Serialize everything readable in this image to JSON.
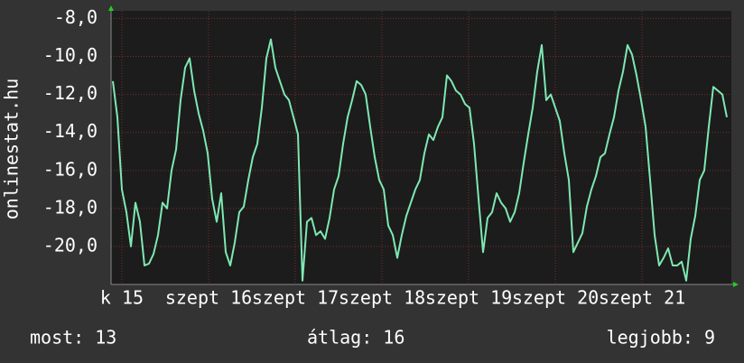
{
  "chart_data": {
    "type": "line",
    "y_label": "onlinestat.hu",
    "x": [
      -2.5,
      -1.25,
      0,
      1.25,
      2.5,
      3.75,
      5,
      6.25,
      7.5,
      8.75,
      10,
      11.25,
      12.5,
      13.75,
      15,
      16.25,
      17.5,
      18.75,
      20,
      21.25,
      22.5,
      23.75,
      25,
      26.25,
      27.5,
      28.75,
      30,
      31.25,
      32.5,
      33.75,
      35,
      36.25,
      37.5,
      38.75,
      40,
      41.25,
      42.5,
      43.75,
      45,
      46.25,
      47.5,
      48.75,
      50,
      51.25,
      52.5,
      53.75,
      55,
      56.25,
      57.5,
      58.75,
      60,
      61.25,
      62.5,
      63.75,
      65,
      66.25,
      67.5,
      68.75,
      70,
      71.25,
      72.5,
      73.75,
      75,
      76.25,
      77.5,
      78.75,
      80,
      81.25,
      82.5,
      83.75,
      85,
      86.25,
      87.5,
      88.75,
      90,
      91.25,
      92.5,
      93.75,
      95,
      96.25,
      97.5,
      98.75,
      100,
      101.25,
      102.5,
      103.75,
      105,
      106.25,
      107.5,
      108.75,
      110,
      111.25,
      112.5,
      113.75,
      115,
      116.25,
      117.5,
      118.75,
      120,
      121.25,
      122.5,
      123.75,
      125,
      126.25,
      127.5,
      128.75,
      130,
      131.25,
      132.5,
      133.75,
      135,
      136.25,
      137.5,
      138.75,
      140,
      141.25,
      142.5,
      143.75,
      145,
      146.25,
      147.5,
      148.75,
      150,
      151.25,
      152.5,
      153.75,
      155,
      156.25,
      157.5,
      158.75,
      160,
      161.25,
      162.5,
      163.75,
      165,
      166.25,
      167.5
    ],
    "series": [
      {
        "color": "#7ee8b2",
        "values": [
          -11.3,
          -13.2,
          -17,
          -18.2,
          -20,
          -17.7,
          -18.7,
          -21,
          -20.9,
          -20.4,
          -19.4,
          -17.7,
          -18,
          -16,
          -14.9,
          -12.3,
          -10.6,
          -10.1,
          -11.8,
          -13,
          -13.9,
          -15.1,
          -17.5,
          -18.7,
          -17.2,
          -20.3,
          -21,
          -19.8,
          -18.2,
          -17.9,
          -16.5,
          -15.3,
          -14.6,
          -12.7,
          -10.1,
          -9.1,
          -10.6,
          -11.3,
          -12,
          -12.3,
          -13.2,
          -14.1,
          -21.8,
          -18.7,
          -18.5,
          -19.4,
          -19.2,
          -19.6,
          -18.5,
          -17,
          -16.3,
          -14.6,
          -13.2,
          -12.3,
          -11.3,
          -11.5,
          -12,
          -13.7,
          -15.3,
          -16.5,
          -17,
          -18.9,
          -19.4,
          -20.6,
          -19.4,
          -18.4,
          -17.7,
          -17,
          -16.5,
          -15.1,
          -14.1,
          -14.4,
          -13.7,
          -13.2,
          -11,
          -11.3,
          -11.8,
          -12,
          -12.5,
          -12.7,
          -14.6,
          -17.5,
          -20.3,
          -18.5,
          -18.2,
          -17.2,
          -17.7,
          -18,
          -18.7,
          -18.2,
          -17.2,
          -15.6,
          -14.1,
          -12.7,
          -10.8,
          -9.4,
          -12.3,
          -12,
          -12.7,
          -13.4,
          -15.1,
          -16.5,
          -20.3,
          -19.8,
          -19.3,
          -17.9,
          -17,
          -16.3,
          -15.3,
          -15.1,
          -14.1,
          -13.2,
          -11.8,
          -10.8,
          -9.4,
          -9.9,
          -11,
          -12.3,
          -13.7,
          -16.5,
          -19.4,
          -21,
          -20.6,
          -20.1,
          -21,
          -21,
          -20.8,
          -21.8,
          -19.6,
          -18.4,
          -16.5,
          -16,
          -13.7,
          -11.6,
          -11.8,
          -12,
          -13.2
        ]
      }
    ],
    "xlim": [
      -3,
      168.75
    ],
    "xticks": [
      {
        "value": 0,
        "label": "k 15"
      },
      {
        "value": 24,
        "label": "szept 16"
      },
      {
        "value": 48,
        "label": "szept 17"
      },
      {
        "value": 72,
        "label": "szept 18"
      },
      {
        "value": 96,
        "label": "szept 19"
      },
      {
        "value": 120,
        "label": "szept 20"
      },
      {
        "value": 144,
        "label": "szept 21"
      }
    ],
    "ylim": [
      -22,
      -7.6
    ],
    "yticks": [
      {
        "value": -8,
        "label": "-8,0"
      },
      {
        "value": -10,
        "label": "-10,0"
      },
      {
        "value": -12,
        "label": "-12,0"
      },
      {
        "value": -14,
        "label": "-14,0"
      },
      {
        "value": -16,
        "label": "-16,0"
      },
      {
        "value": -18,
        "label": "-18,0"
      },
      {
        "value": -20,
        "label": "-20,0"
      }
    ],
    "grid": true,
    "footer": [
      "most: 13",
      "átlag: 16",
      "legjobb: 9"
    ]
  }
}
